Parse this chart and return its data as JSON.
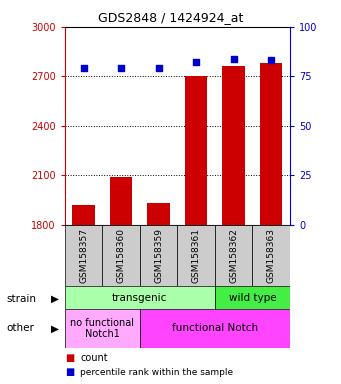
{
  "title": "GDS2848 / 1424924_at",
  "samples": [
    "GSM158357",
    "GSM158360",
    "GSM158359",
    "GSM158361",
    "GSM158362",
    "GSM158363"
  ],
  "counts": [
    1920,
    2090,
    1930,
    2700,
    2760,
    2780
  ],
  "percentiles": [
    79,
    79,
    79,
    82,
    84,
    83
  ],
  "ymin": 1800,
  "ymax": 3000,
  "yticks": [
    1800,
    2100,
    2400,
    2700,
    3000
  ],
  "y2min": 0,
  "y2max": 100,
  "y2ticks": [
    0,
    25,
    50,
    75,
    100
  ],
  "bar_color": "#cc0000",
  "dot_color": "#0000cc",
  "transgenic_color": "#aaffaa",
  "wildtype_color": "#44ee44",
  "nofunc_color": "#ffaaff",
  "func_color": "#ff44ff",
  "sample_box_color": "#cccccc",
  "ylabel_left_color": "#cc0000",
  "ylabel_right_color": "#0000cc",
  "background_color": "#ffffff",
  "legend_count_color": "#cc0000",
  "legend_pct_color": "#0000cc"
}
